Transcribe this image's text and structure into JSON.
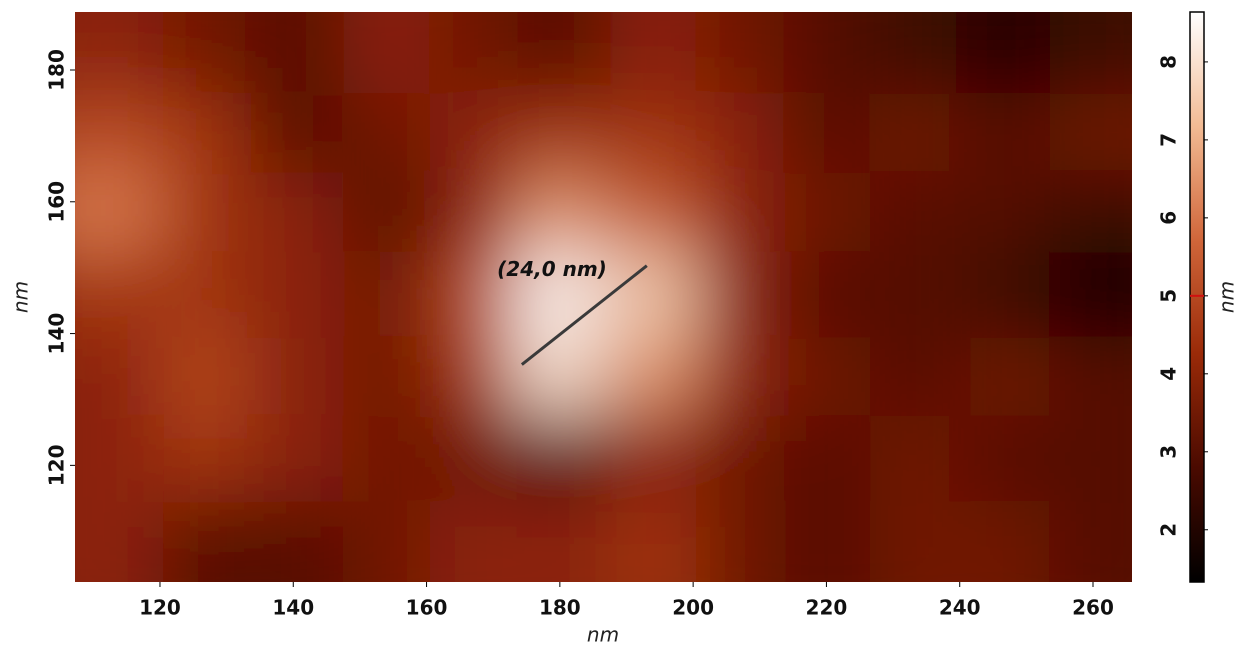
{
  "chart_data": {
    "type": "heatmap",
    "x": [
      114,
      127,
      141,
      154,
      167,
      180,
      194,
      207,
      220,
      233,
      247,
      260
    ],
    "y": [
      183,
      170,
      158,
      146,
      133,
      121,
      108
    ],
    "z": [
      [
        4,
        3.5,
        3,
        4,
        3.5,
        3,
        4,
        3.5,
        3,
        2.5,
        2,
        2.5
      ],
      [
        5,
        4.5,
        3,
        3.5,
        4,
        4.5,
        4.5,
        4,
        3,
        3.5,
        3,
        3.5
      ],
      [
        6,
        4.5,
        4,
        3,
        4,
        6.5,
        5.5,
        4,
        3.5,
        3,
        3,
        2.5
      ],
      [
        4.5,
        4.5,
        4,
        3.5,
        5,
        8.5,
        7.5,
        4,
        3,
        3,
        2.5,
        1.8
      ],
      [
        4,
        5,
        4,
        3.5,
        4.5,
        8,
        6.5,
        4,
        3.5,
        3,
        3.5,
        3
      ],
      [
        4,
        4.5,
        4,
        3.5,
        3.5,
        3,
        4,
        3.5,
        3,
        3.5,
        3,
        3
      ],
      [
        4,
        3,
        3,
        3.5,
        4,
        4,
        4.5,
        3.5,
        3,
        3.5,
        3.5,
        3
      ]
    ],
    "xlim": [
      107.25,
      265.85
    ],
    "ylim": [
      102.3,
      188.8
    ],
    "xticks": [
      120,
      140,
      160,
      180,
      200,
      220,
      240,
      260
    ],
    "yticks": [
      120,
      140,
      160,
      180
    ],
    "xlabel": "nm",
    "ylabel": "nm",
    "zlim": [
      1.33,
      8.64
    ],
    "zticks": [
      2,
      3,
      4,
      5,
      6,
      7,
      8
    ],
    "zlabel": "nm",
    "colorbar_marker": 5,
    "colorbar_marker_color": "#d01010",
    "colormap": [
      "#000000",
      "#4a0a00",
      "#9a2a08",
      "#d0663a",
      "#f2bb94",
      "#ffffff"
    ],
    "annotations": [
      {
        "text": "(24,0 nm)",
        "x": [
          174.3,
          193.05
        ],
        "y": [
          135.3,
          150.3
        ],
        "color": "#3a3a3a"
      }
    ]
  }
}
